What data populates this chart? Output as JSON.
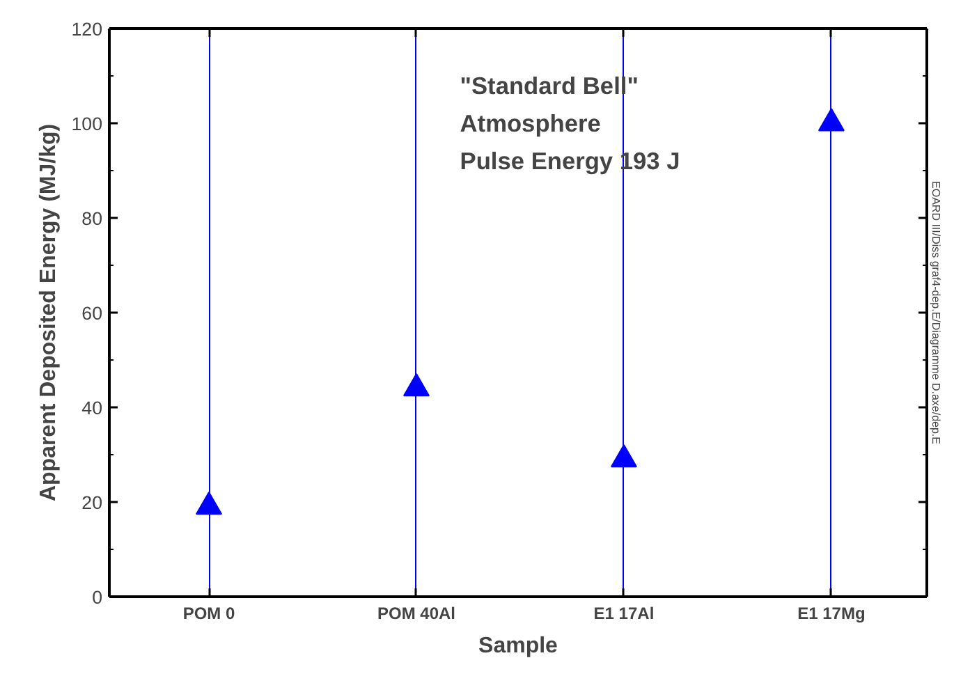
{
  "chart_data": {
    "type": "scatter",
    "xlabel": "Sample",
    "ylabel": "Apparent Deposited Energy (MJ/kg)",
    "categories": [
      "POM 0",
      "POM 40Al",
      "E1 17Al",
      "E1 17Mg"
    ],
    "series": [
      {
        "color": "#0000ff",
        "values": [
          19,
          44,
          29,
          100
        ]
      }
    ],
    "marker": "triangle",
    "ylim": [
      0,
      120
    ],
    "yticks": [
      0,
      {
        "value": 10,
        "label": null
      },
      20,
      {
        "value": 30,
        "label": null
      },
      40,
      {
        "value": 50,
        "label": null
      },
      60,
      {
        "value": 70,
        "label": null
      },
      80,
      {
        "value": 90,
        "label": null
      },
      100,
      {
        "value": 110,
        "label": null
      },
      120
    ],
    "grid": "x",
    "annotations": [
      "\"Standard Bell\"",
      "  Atmosphere",
      "Pulse Energy 193 J",
      "EOARD III/Diss graf4-dep.E/Diagramme D.axe/dep.E"
    ]
  }
}
